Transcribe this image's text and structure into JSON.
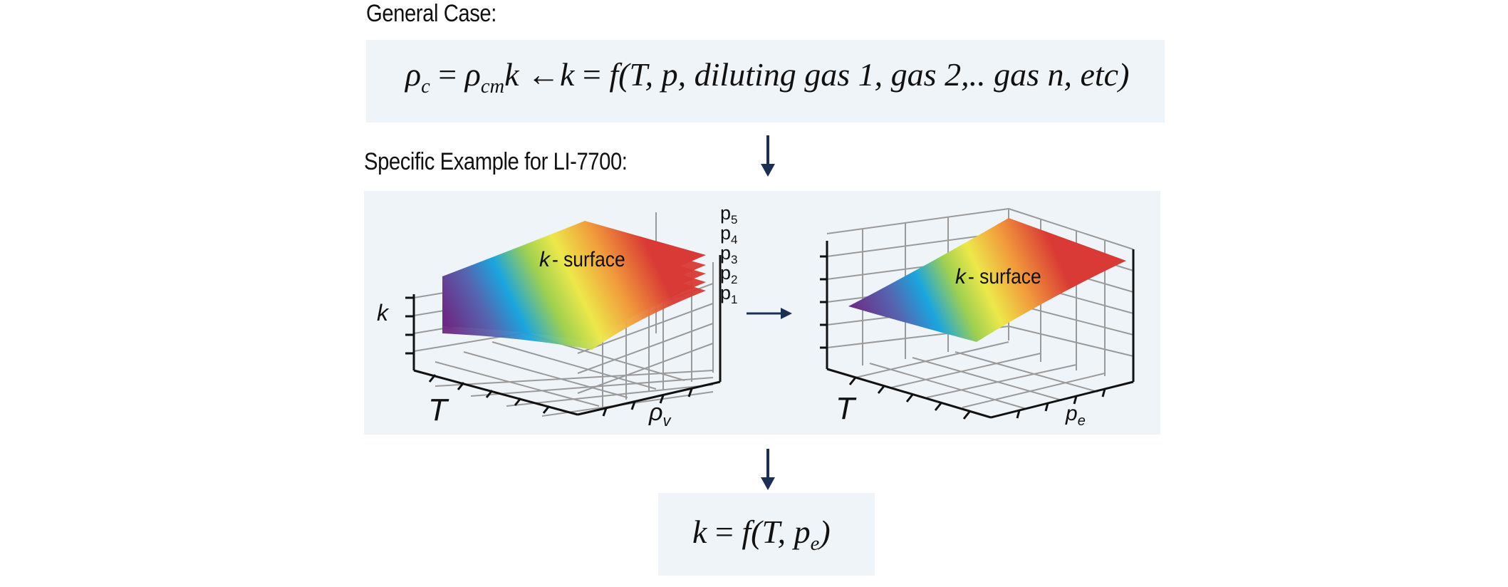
{
  "general": {
    "heading": "General Case:",
    "eq": {
      "rho": "ρ",
      "c": "c",
      "equals": "=",
      "cm": "cm",
      "k": "k",
      "arrow": "←",
      "f_open": "f(",
      "T": "T",
      "rest": ", p, diluting gas 1, gas 2,.. gas n, etc",
      "close": ")"
    }
  },
  "specific": {
    "heading": "Specific Example for LI-7700:",
    "left_plot": {
      "surface_label_k": "k",
      "surface_label_text": "- surface",
      "axis_k": "k",
      "axis_T": "T",
      "axis_rho": "ρ",
      "axis_rho_sub": "v",
      "layers": [
        {
          "p": "p",
          "n": "5"
        },
        {
          "p": "p",
          "n": "4"
        },
        {
          "p": "p",
          "n": "3"
        },
        {
          "p": "p",
          "n": "2"
        },
        {
          "p": "p",
          "n": "1"
        }
      ]
    },
    "right_plot": {
      "surface_label_k": "k",
      "surface_label_text": "- surface",
      "axis_T": "T",
      "axis_p": "p",
      "axis_p_sub": "e"
    }
  },
  "result": {
    "eq": {
      "k": "k",
      "equals": "=",
      "f_open": "f(",
      "T": "T",
      "comma": ", ",
      "p": "p",
      "e": "e",
      "close": ")"
    }
  },
  "colors": {
    "panel": "#eff4f8",
    "arrow": "#1a2f52",
    "grid": "#9a9a9a",
    "axis": "#111111"
  }
}
